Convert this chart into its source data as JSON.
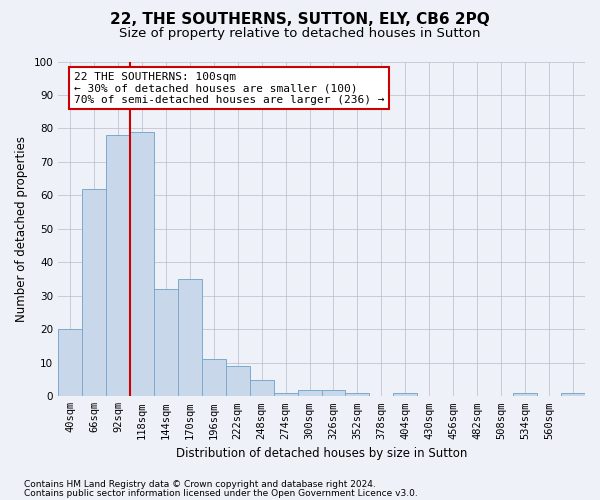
{
  "title": "22, THE SOUTHERNS, SUTTON, ELY, CB6 2PQ",
  "subtitle": "Size of property relative to detached houses in Sutton",
  "xlabel": "Distribution of detached houses by size in Sutton",
  "ylabel": "Number of detached properties",
  "bar_values": [
    20,
    62,
    78,
    79,
    32,
    35,
    11,
    9,
    5,
    1,
    2,
    2,
    1,
    0,
    1,
    0,
    0,
    0,
    0,
    1,
    0,
    1
  ],
  "bar_labels": [
    "40sqm",
    "66sqm",
    "92sqm",
    "118sqm",
    "144sqm",
    "170sqm",
    "196sqm",
    "222sqm",
    "248sqm",
    "274sqm",
    "300sqm",
    "326sqm",
    "352sqm",
    "378sqm",
    "404sqm",
    "430sqm",
    "456sqm",
    "482sqm",
    "508sqm",
    "534sqm",
    "560sqm",
    ""
  ],
  "bar_color": "#c8d8ea",
  "bar_edge_color": "#7aaacc",
  "grid_color": "#bbbbcc",
  "background_color": "#eef2f8",
  "vline_color": "#cc0000",
  "annotation_text": "22 THE SOUTHERNS: 100sqm\n← 30% of detached houses are smaller (100)\n70% of semi-detached houses are larger (236) →",
  "annotation_box_facecolor": "#ffffff",
  "annotation_box_edgecolor": "#cc0000",
  "ylim": [
    0,
    100
  ],
  "yticks": [
    0,
    10,
    20,
    30,
    40,
    50,
    60,
    70,
    80,
    90,
    100
  ],
  "footer_line1": "Contains HM Land Registry data © Crown copyright and database right 2024.",
  "footer_line2": "Contains public sector information licensed under the Open Government Licence v3.0.",
  "title_fontsize": 11,
  "subtitle_fontsize": 9.5,
  "axis_label_fontsize": 8.5,
  "tick_fontsize": 7.5,
  "annotation_fontsize": 8,
  "footer_fontsize": 6.5
}
